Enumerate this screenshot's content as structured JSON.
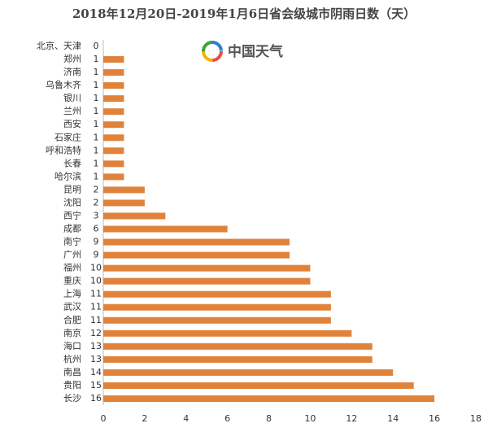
{
  "chart_data": {
    "type": "hbar",
    "title": "2018年12月20日-2019年1月6日省会级城市阴雨日数（天）",
    "watermark": "中国天气",
    "categories": [
      "北京、天津",
      "郑州",
      "济南",
      "乌鲁木齐",
      "银川",
      "兰州",
      "西安",
      "石家庄",
      "呼和浩特",
      "长春",
      "哈尔滨",
      "昆明",
      "沈阳",
      "西宁",
      "成都",
      "南宁",
      "广州",
      "福州",
      "重庆",
      "上海",
      "武汉",
      "合肥",
      "南京",
      "海口",
      "杭州",
      "南昌",
      "贵阳",
      "长沙"
    ],
    "values": [
      0,
      1,
      1,
      1,
      1,
      1,
      1,
      1,
      1,
      1,
      1,
      2,
      2,
      3,
      6,
      9,
      9,
      10,
      10,
      11,
      11,
      11,
      12,
      13,
      13,
      14,
      15,
      16
    ],
    "color": "#e0823a",
    "xlim": [
      0,
      18
    ],
    "xticks": [
      0,
      2,
      4,
      6,
      8,
      10,
      12,
      14,
      16,
      18
    ],
    "grid": false
  }
}
